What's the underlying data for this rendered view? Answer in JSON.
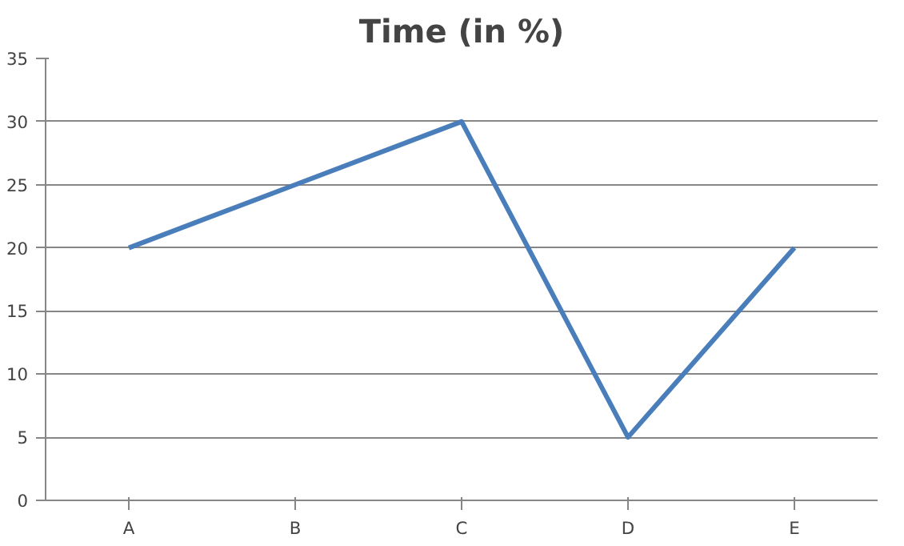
{
  "chart_data": {
    "type": "line",
    "title": "Time (in %)",
    "categories": [
      "A",
      "B",
      "C",
      "D",
      "E"
    ],
    "series": [
      {
        "color": "#4a7ebb",
        "values": [
          20,
          25,
          30,
          5,
          20
        ]
      }
    ],
    "ylim": [
      0,
      35
    ],
    "yticks": [
      0,
      5,
      10,
      15,
      20,
      25,
      30,
      35
    ],
    "grid": "y",
    "marker": "none",
    "line_style": "solid"
  }
}
